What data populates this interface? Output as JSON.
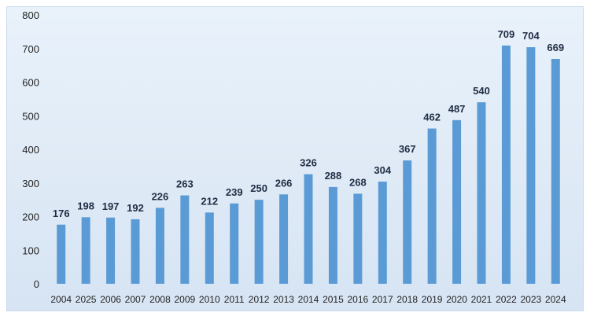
{
  "chart_data": {
    "type": "bar",
    "title": "",
    "xlabel": "",
    "ylabel": "",
    "ylim": [
      0,
      800
    ],
    "yticks": [
      0,
      100,
      200,
      300,
      400,
      500,
      600,
      700,
      800
    ],
    "grid": false,
    "categories": [
      "2004",
      "2025",
      "2006",
      "2007",
      "2008",
      "2009",
      "2010",
      "2011",
      "2012",
      "2013",
      "2014",
      "2015",
      "2016",
      "2017",
      "2018",
      "2019",
      "2020",
      "2021",
      "2022",
      "2023",
      "2024"
    ],
    "values": [
      176,
      198,
      197,
      192,
      226,
      263,
      212,
      239,
      250,
      266,
      326,
      288,
      268,
      304,
      367,
      462,
      487,
      540,
      709,
      704,
      669
    ],
    "bar_color": "#5b9bd5",
    "data_labels": true
  }
}
